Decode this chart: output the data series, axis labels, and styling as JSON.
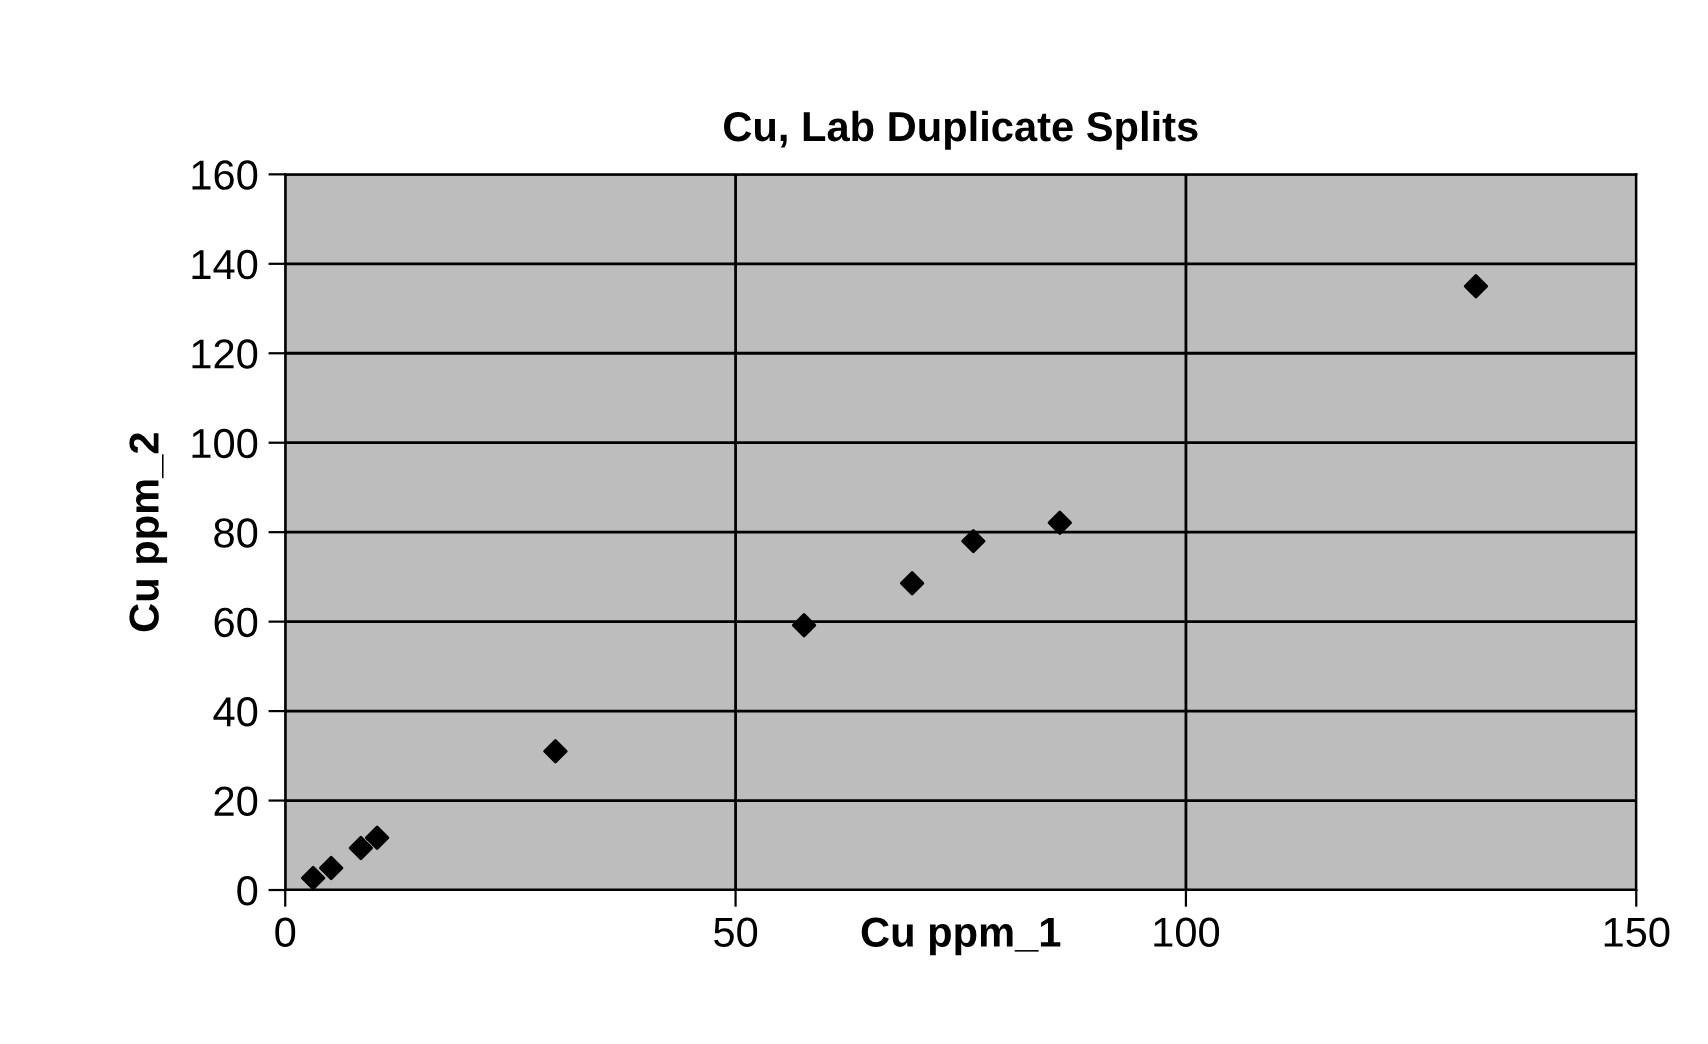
{
  "chart_data": {
    "type": "scatter",
    "title": "Cu, Lab Duplicate Splits",
    "xlabel": "Cu ppm_1",
    "ylabel": "Cu ppm_2",
    "x": [
      3.1,
      5.1,
      8.4,
      10.2,
      30,
      57.6,
      69.6,
      76.4,
      86.0,
      132.2
    ],
    "series": [
      {
        "color": "#000000",
        "values": [
          2.7,
          4.9,
          9.4,
          11.7,
          31,
          59.2,
          68.6,
          78.0,
          82.1,
          135.0
        ]
      }
    ],
    "xlim": [
      0,
      150
    ],
    "xticks": [
      0,
      50,
      100,
      150
    ],
    "ylim": [
      0,
      160
    ],
    "yticks": [
      0,
      20,
      40,
      60,
      80,
      100,
      120,
      140,
      160
    ],
    "grid": true,
    "marker": "diamond",
    "legend": false
  }
}
